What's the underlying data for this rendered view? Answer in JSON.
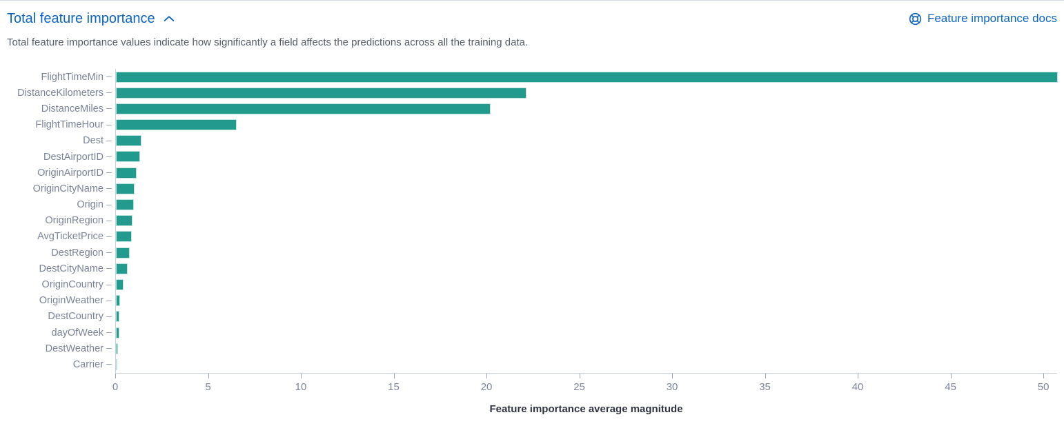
{
  "header": {
    "title": "Total feature importance",
    "docs_link_label": "Feature importance docs"
  },
  "description": "Total feature importance values indicate how significantly a field affects the predictions across all the training data.",
  "chart_data": {
    "type": "bar",
    "orientation": "horizontal",
    "title": "Total feature importance",
    "xlabel": "Feature importance average magnitude",
    "ylabel": "",
    "xlim": [
      0,
      50.74
    ],
    "xticks": [
      0,
      5,
      10,
      15,
      20,
      25,
      30,
      35,
      40,
      45,
      50
    ],
    "grid": false,
    "legend": false,
    "bar_color": "#229a8d",
    "categories": [
      "FlightTimeMin",
      "DistanceKilometers",
      "DistanceMiles",
      "FlightTimeHour",
      "Dest",
      "DestAirportID",
      "OriginAirportID",
      "OriginCityName",
      "Origin",
      "OriginRegion",
      "AvgTicketPrice",
      "DestRegion",
      "DestCityName",
      "OriginCountry",
      "OriginWeather",
      "DestCountry",
      "dayOfWeek",
      "DestWeather",
      "Carrier"
    ],
    "values": [
      50.74,
      22.1,
      20.2,
      6.5,
      1.36,
      1.3,
      1.1,
      1.02,
      0.98,
      0.9,
      0.85,
      0.74,
      0.62,
      0.42,
      0.22,
      0.2,
      0.17,
      0.12,
      0.06
    ]
  },
  "colors": {
    "link_blue": "#0b64c2",
    "bar_teal": "#229a8d",
    "axis_line": "#c9cfda",
    "axis_text": "#7a8497",
    "description_text": "#545c66",
    "axis_title_text": "#2f3440"
  },
  "icons": {
    "collapse": "chevron-up-icon",
    "docs": "help-icon"
  }
}
